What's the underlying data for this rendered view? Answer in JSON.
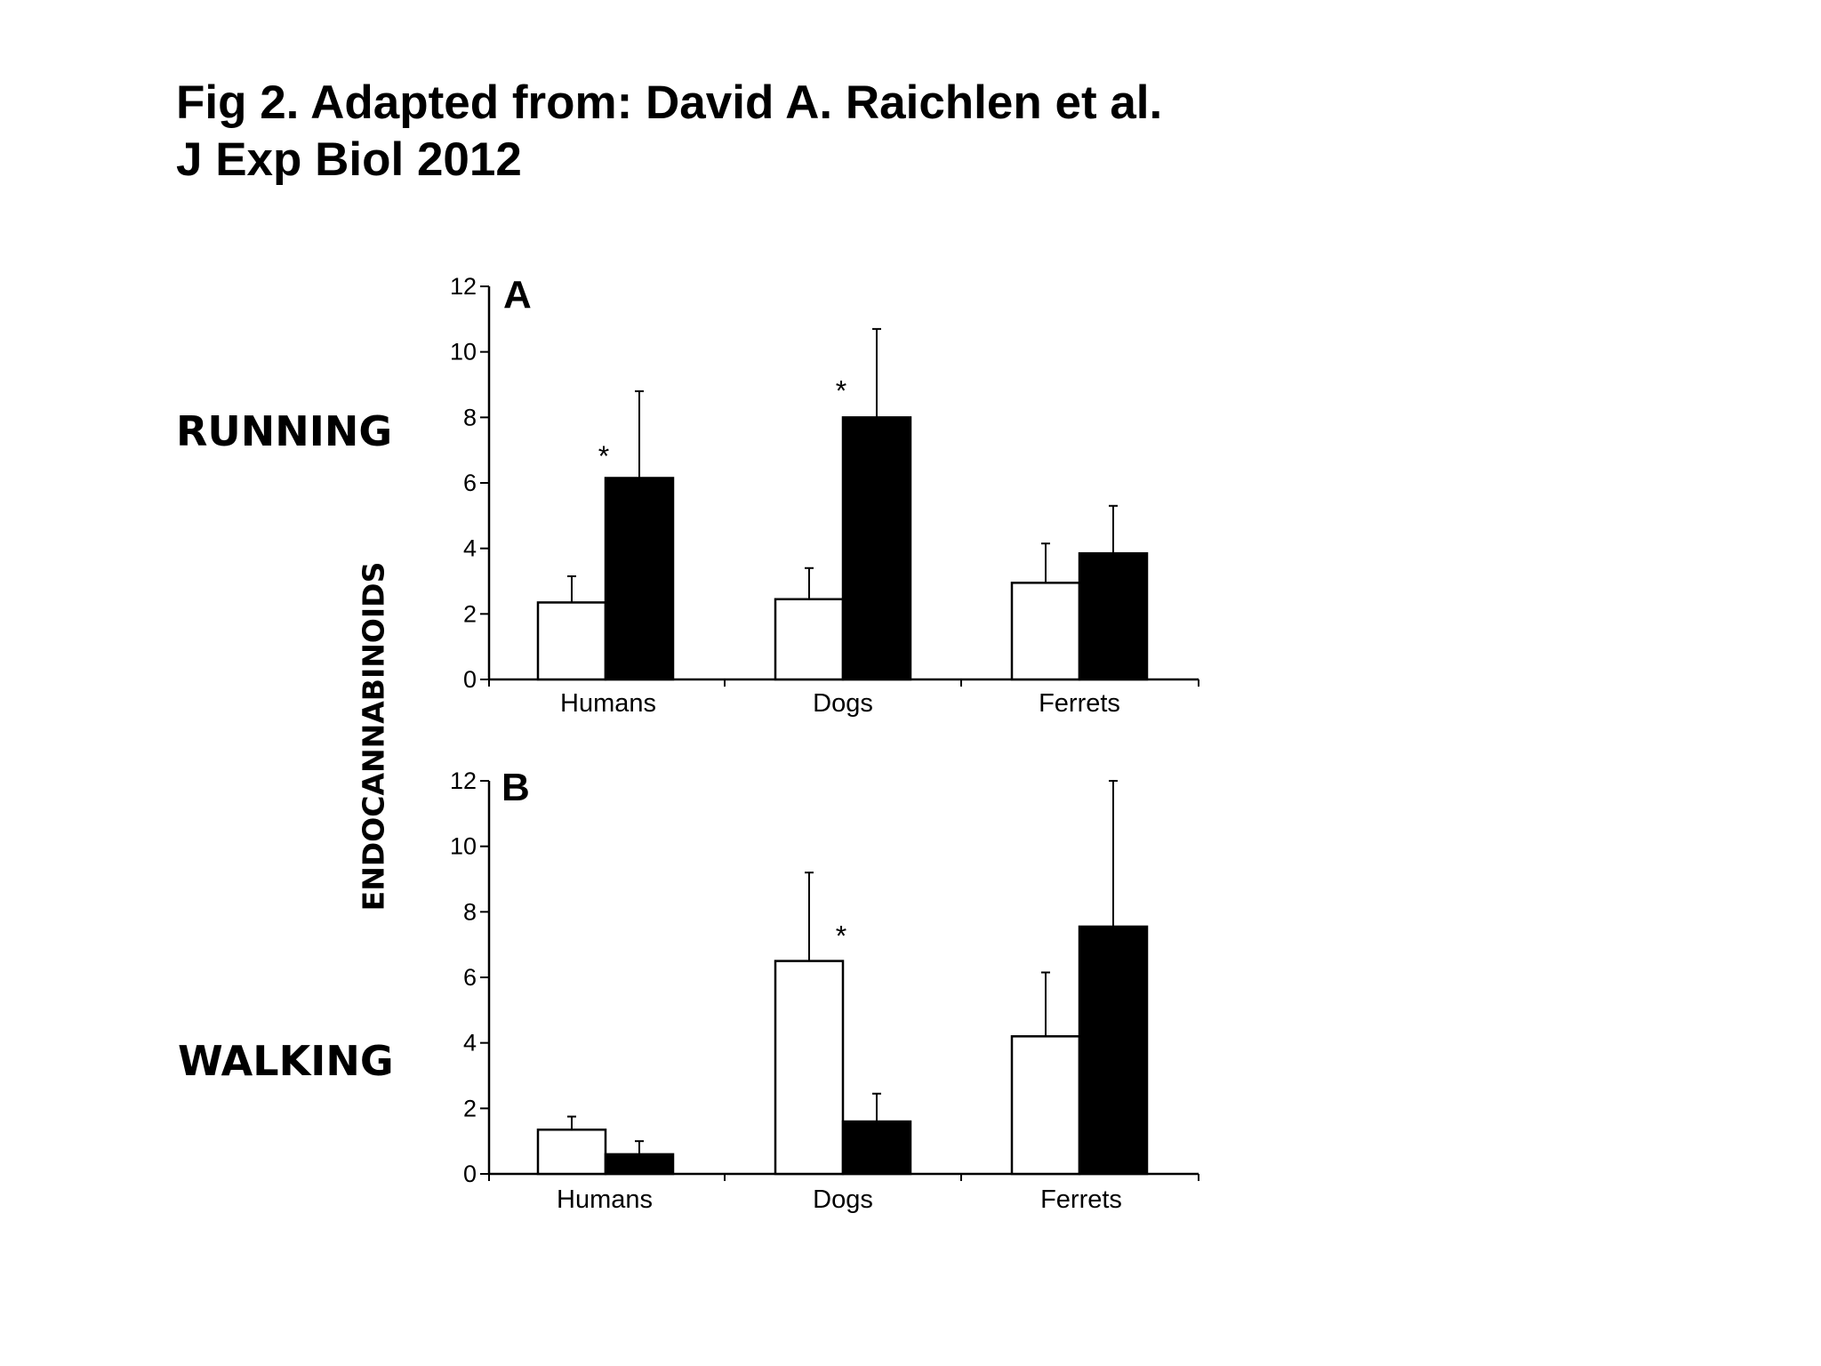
{
  "title": {
    "line1": "Fig 2. Adapted from: David A. Raichlen et al.",
    "line2": "J Exp Biol 2012"
  },
  "labels": {
    "running": "RUNNING",
    "walking": "WALKING",
    "ylabel": "ENDOCANNABINOIDS"
  },
  "colors": {
    "pre": "#ffffff",
    "post": "#000000",
    "axis": "#000000"
  },
  "chart_data": [
    {
      "type": "bar",
      "panel": "A",
      "categories": [
        "Humans",
        "Dogs",
        "Ferrets"
      ],
      "ylim": [
        0,
        12
      ],
      "yticks": [
        0,
        2,
        4,
        6,
        8,
        10,
        12
      ],
      "series": [
        {
          "fill": "white",
          "values": [
            2.35,
            2.45,
            2.95
          ],
          "errors": [
            0.8,
            0.95,
            1.2
          ]
        },
        {
          "fill": "black",
          "values": [
            6.15,
            8.0,
            3.85
          ],
          "errors": [
            2.65,
            2.7,
            1.45
          ]
        }
      ],
      "annotations": [
        {
          "category": "Humans",
          "text": "*",
          "y": 7.0
        },
        {
          "category": "Dogs",
          "text": "*",
          "y": 9.0
        }
      ],
      "ylabel": "ENDOCANNABINOIDS",
      "side_label": "RUNNING"
    },
    {
      "type": "bar",
      "panel": "B",
      "categories": [
        "Humans",
        "Dogs",
        "Ferrets"
      ],
      "ylim": [
        0,
        12
      ],
      "yticks": [
        0,
        2,
        4,
        6,
        8,
        10,
        12
      ],
      "series": [
        {
          "fill": "white",
          "values": [
            1.35,
            6.5,
            4.2
          ],
          "errors": [
            0.4,
            2.7,
            1.95
          ]
        },
        {
          "fill": "black",
          "values": [
            0.6,
            1.6,
            7.55
          ],
          "errors": [
            0.4,
            0.85,
            4.45
          ]
        }
      ],
      "annotations": [
        {
          "category": "Dogs",
          "text": "*",
          "y": 7.45
        }
      ],
      "ylabel": "ENDOCANNABINOIDS",
      "side_label": "WALKING"
    }
  ]
}
